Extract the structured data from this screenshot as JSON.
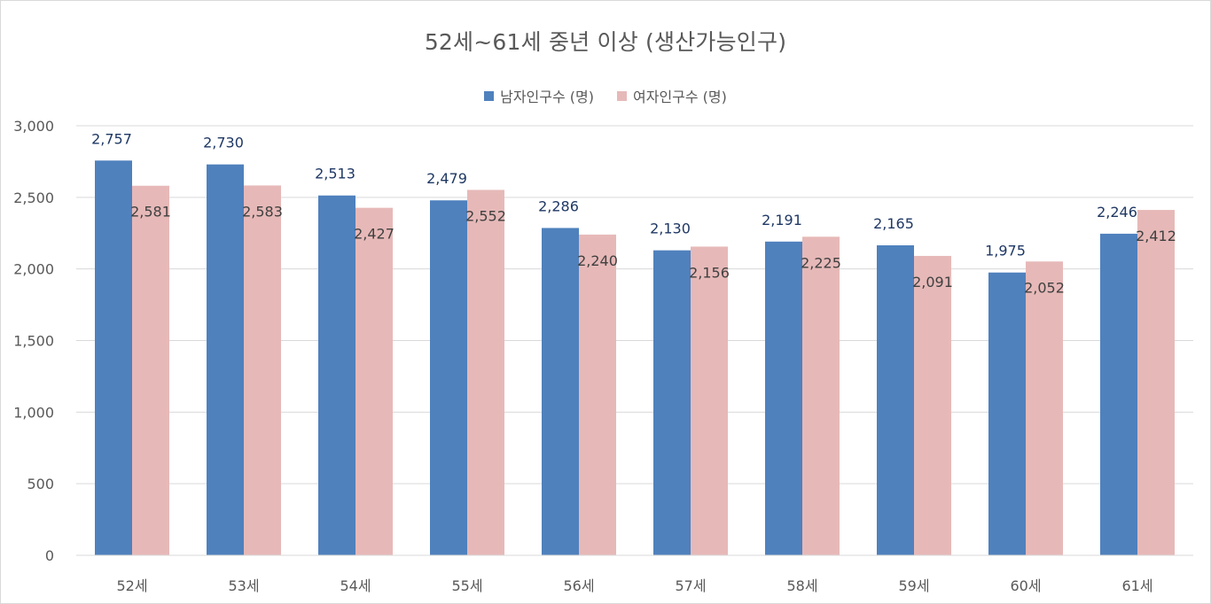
{
  "chart_data": {
    "type": "bar",
    "title": "52세~61세 중년 이상 (생산가능인구)",
    "categories": [
      "52세",
      "53세",
      "54세",
      "55세",
      "56세",
      "57세",
      "58세",
      "59세",
      "60세",
      "61세"
    ],
    "series": [
      {
        "name": "남자인구수 (명)",
        "color": "#4f81bd",
        "values": [
          2757,
          2730,
          2513,
          2479,
          2286,
          2130,
          2191,
          2165,
          1975,
          2246
        ]
      },
      {
        "name": "여자인구수 (명)",
        "color": "#e6b9b8",
        "values": [
          2581,
          2583,
          2427,
          2552,
          2240,
          2156,
          2225,
          2091,
          2052,
          2412
        ]
      }
    ],
    "ylim": [
      0,
      3000
    ],
    "yticks": [
      0,
      500,
      1000,
      1500,
      2000,
      2500,
      3000
    ],
    "ytick_labels": [
      "0",
      "500",
      "1,000",
      "1,500",
      "2,000",
      "2,500",
      "3,000"
    ],
    "grid": true,
    "legend_position": "top-center",
    "label_color_male": "#1f3864",
    "label_color_female": "#404040",
    "gridline_color": "#d9d9d9"
  }
}
